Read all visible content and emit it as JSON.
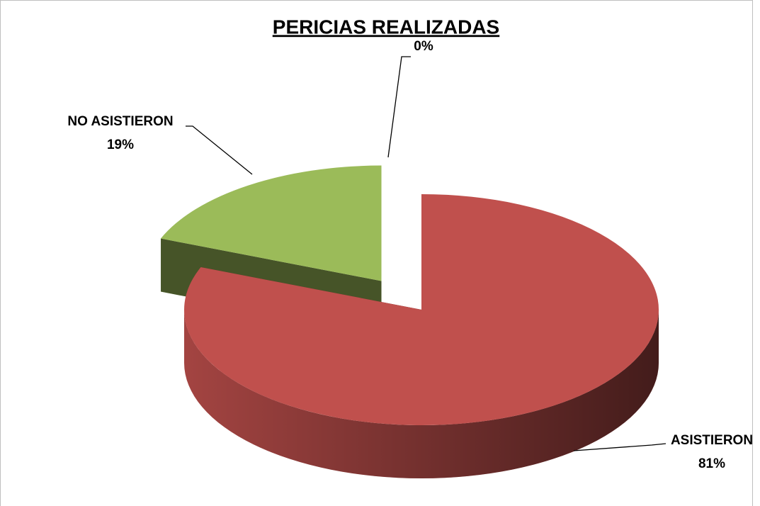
{
  "chart_data": {
    "type": "pie",
    "title": "PERICIAS REALIZADAS",
    "categories": [
      "ASISTIERON",
      "NO ASISTIERON",
      null
    ],
    "values": [
      81,
      19,
      0
    ],
    "value_labels": [
      "81%",
      "19%",
      "0%"
    ],
    "colors": [
      "#c0504d",
      "#9bbb59",
      "#4f81bd"
    ]
  }
}
